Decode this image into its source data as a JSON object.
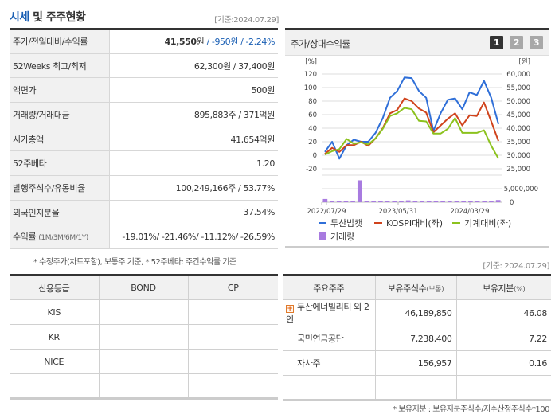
{
  "header": {
    "title_highlight": "시세",
    "title_rest": " 및 주주현황",
    "as_of": "[기준:2024.07.29]"
  },
  "info_table": {
    "rows": [
      {
        "label": "주가/전일대비/수익률",
        "price": "41,550",
        "price_unit": "원",
        "sep1": " / ",
        "change": "-950원",
        "sep2": " / ",
        "change_pct": "-2.24%"
      },
      {
        "label": "52Weeks 최고/최저",
        "value": "62,300원 / 37,400원"
      },
      {
        "label": "액면가",
        "value": "500원"
      },
      {
        "label": "거래량/거래대금",
        "value": "895,883주 / 371억원"
      },
      {
        "label": "시가총액",
        "value": "41,654억원"
      },
      {
        "label": "52주베타",
        "value": "1.20"
      },
      {
        "label": "발행주식수/유동비율",
        "value": "100,249,166주 / 53.77%"
      },
      {
        "label": "외국인지분율",
        "value": "37.54%"
      },
      {
        "label": "수익률",
        "label_sub": "(1M/3M/6M/1Y)",
        "value": "-19.01%/ -21.46%/ -11.12%/ -26.59%"
      }
    ],
    "footnote": "* 수정주가(차트포함), 보통주 기준, * 52주베타: 주간수익률 기준"
  },
  "chart_panel": {
    "title": "주가/상대수익률",
    "pages": [
      "1",
      "2",
      "3"
    ],
    "active_page": "1"
  },
  "chart_data": {
    "type": "line",
    "title": "주가/상대수익률",
    "left_axis": {
      "label": "[%]",
      "ticks": [
        120,
        100,
        80,
        60,
        40,
        20,
        0,
        -20
      ],
      "range": [
        -20,
        120
      ]
    },
    "right_axis": {
      "label": "[원]",
      "ticks": [
        "60,000",
        "55,000",
        "50,000",
        "45,000",
        "40,000",
        "35,000",
        "30,000",
        "25,000"
      ],
      "range": [
        25000,
        60000
      ]
    },
    "volume_axis": {
      "ticks": [
        "5,000,000",
        "0"
      ]
    },
    "x_ticks": [
      "2022/07/29",
      "2023/05/31",
      "2024/03/29"
    ],
    "series": [
      {
        "name": "두산밥캣",
        "color": "#2f6fd8",
        "values": [
          5,
          20,
          -5,
          15,
          23,
          20,
          20,
          33,
          55,
          85,
          95,
          115,
          114,
          95,
          85,
          36,
          62,
          82,
          84,
          68,
          93,
          89,
          110,
          85,
          46
        ]
      },
      {
        "name": "KOSPI대비(좌)",
        "color": "#d0431c",
        "values": [
          2,
          11,
          5,
          15,
          15,
          20,
          14,
          25,
          40,
          62,
          67,
          84,
          80,
          69,
          63,
          34,
          44,
          54,
          62,
          44,
          59,
          58,
          78,
          50,
          21
        ]
      },
      {
        "name": "기계대비(좌)",
        "color": "#8cc21e",
        "values": [
          1,
          6,
          9,
          24,
          17,
          19,
          16,
          25,
          39,
          58,
          62,
          70,
          68,
          51,
          50,
          32,
          32,
          39,
          55,
          33,
          33,
          33,
          37,
          14,
          -5
        ]
      }
    ],
    "volume": {
      "name": "거래량",
      "color": "#a87be0",
      "values": [
        1.2,
        0.2,
        0.2,
        0.2,
        0.2,
        8.1,
        0.2,
        0.2,
        0.2,
        0.4,
        0.4,
        0.2,
        0.7,
        0.5,
        0.5,
        0.3,
        0.4,
        0.4,
        0.3,
        0.5,
        0.5,
        0.3,
        0.2,
        0.2,
        0.2,
        0.8
      ]
    },
    "legend": [
      "두산밥캣",
      "KOSPI대비(좌)",
      "기계대비(좌)",
      "거래량"
    ]
  },
  "ratings_as_of": "[기준: 2024.07.29]",
  "credit_table": {
    "headers": [
      "신용등급",
      "BOND",
      "CP"
    ],
    "rows": [
      [
        "KIS",
        "",
        ""
      ],
      [
        "KR",
        "",
        ""
      ],
      [
        "NICE",
        "",
        ""
      ],
      [
        "",
        "",
        ""
      ]
    ]
  },
  "holders_table": {
    "headers": {
      "holder": "주요주주",
      "shares": "보유주식수",
      "shares_sub": "(보통)",
      "stake": "보유지분",
      "stake_sub": "(%)"
    },
    "rows": [
      {
        "name": "두산에너빌리티 외 2인",
        "shares": "46,189,850",
        "stake": "46.08",
        "expandable": true
      },
      {
        "name": "국민연금공단",
        "shares": "7,238,400",
        "stake": "7.22"
      },
      {
        "name": "자사주",
        "shares": "156,957",
        "stake": "0.16"
      },
      {
        "name": "",
        "shares": "",
        "stake": ""
      }
    ],
    "footnote": "* 보유지분 : 보유지분주식수/지수산정주식수*100"
  }
}
